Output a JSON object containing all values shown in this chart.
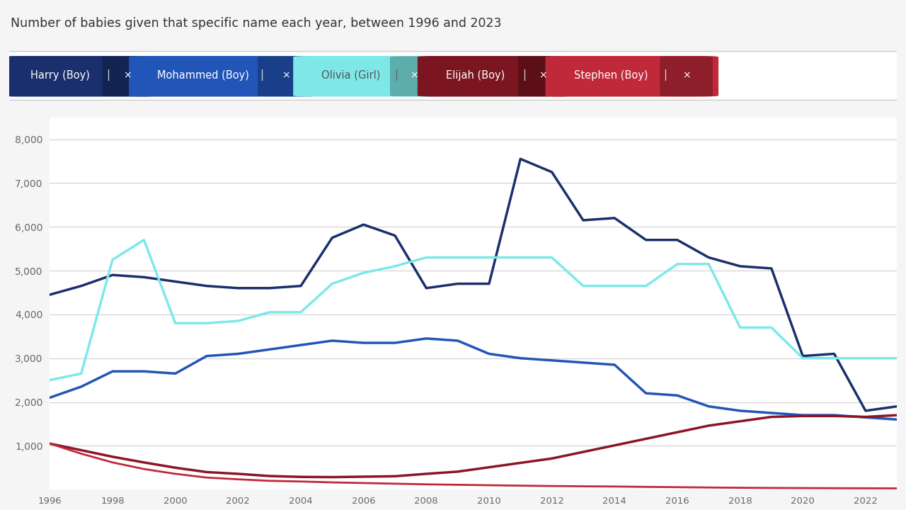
{
  "title": "Number of babies given that specific name each year, between 1996 and 2023",
  "years": [
    1996,
    1997,
    1998,
    1999,
    2000,
    2001,
    2002,
    2003,
    2004,
    2005,
    2006,
    2007,
    2008,
    2009,
    2010,
    2011,
    2012,
    2013,
    2014,
    2015,
    2016,
    2017,
    2018,
    2019,
    2020,
    2021,
    2022,
    2023
  ],
  "series": [
    {
      "name": "Harry (Boy)",
      "color": "#1a2f6e",
      "linewidth": 2.5,
      "data": [
        4450,
        4650,
        4900,
        4850,
        4750,
        4650,
        4600,
        4600,
        4650,
        5750,
        6050,
        5800,
        4600,
        4700,
        4700,
        7550,
        7250,
        6150,
        6200,
        5700,
        5700,
        5300,
        5100,
        5050,
        3050,
        3100,
        1800,
        1900
      ]
    },
    {
      "name": "Mohammed (Boy)",
      "color": "#2255b8",
      "linewidth": 2.5,
      "data": [
        2100,
        2350,
        2700,
        2700,
        2650,
        3050,
        3100,
        3200,
        3300,
        3400,
        3350,
        3350,
        3450,
        3400,
        3100,
        3000,
        2950,
        2900,
        2850,
        2200,
        2150,
        1900,
        1800,
        1750,
        1700,
        1700,
        1650,
        1600
      ]
    },
    {
      "name": "Olivia (Girl)",
      "color": "#7ee8e8",
      "linewidth": 2.5,
      "data": [
        2500,
        2650,
        5250,
        5700,
        3800,
        3800,
        3850,
        4050,
        4050,
        4700,
        4950,
        5100,
        5300,
        5300,
        5300,
        5300,
        5300,
        4650,
        4650,
        4650,
        5150,
        5150,
        3700,
        3700,
        3000,
        3000,
        3000,
        3000
      ]
    },
    {
      "name": "Elijah (Boy)",
      "color": "#8b1525",
      "linewidth": 2.5,
      "data": [
        1050,
        900,
        750,
        620,
        500,
        400,
        360,
        310,
        290,
        285,
        295,
        305,
        360,
        410,
        510,
        610,
        710,
        860,
        1010,
        1160,
        1310,
        1460,
        1560,
        1660,
        1680,
        1680,
        1660,
        1700
      ]
    },
    {
      "name": "Stephen (Boy)",
      "color": "#c0293a",
      "linewidth": 2.0,
      "data": [
        1050,
        820,
        620,
        470,
        360,
        275,
        235,
        200,
        185,
        165,
        150,
        135,
        120,
        110,
        100,
        90,
        82,
        75,
        70,
        62,
        55,
        48,
        42,
        38,
        35,
        32,
        30,
        28
      ]
    }
  ],
  "ylim": [
    0,
    8500
  ],
  "yticks": [
    1000,
    2000,
    3000,
    4000,
    5000,
    6000,
    7000,
    8000
  ],
  "background_color": "#f5f5f5",
  "plot_background": "#ffffff",
  "grid_color": "#d0d0d0",
  "legend_items": [
    {
      "label": "Harry (Boy)",
      "bg": "#1a2f6e",
      "text_color": "white"
    },
    {
      "label": "Mohammed (Boy)",
      "bg": "#2255b8",
      "text_color": "white"
    },
    {
      "label": "Olivia (Girl)",
      "bg": "#7ee8e8",
      "text_color": "#555555"
    },
    {
      "label": "Elijah (Boy)",
      "bg": "#7b1520",
      "text_color": "white"
    },
    {
      "label": "Stephen (Boy)",
      "bg": "#c0293a",
      "text_color": "white"
    }
  ]
}
